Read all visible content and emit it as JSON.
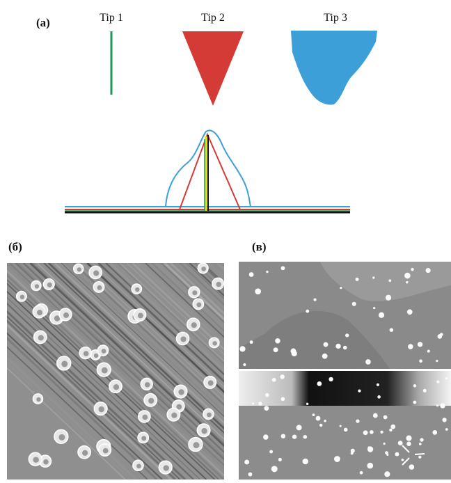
{
  "panel_a": {
    "label": "(a)",
    "tips": [
      "Tip 1",
      "Tip 2",
      "Tip 3"
    ]
  },
  "panel_b": {
    "label": "(б)"
  },
  "panel_c": {
    "label": "(в)"
  }
}
